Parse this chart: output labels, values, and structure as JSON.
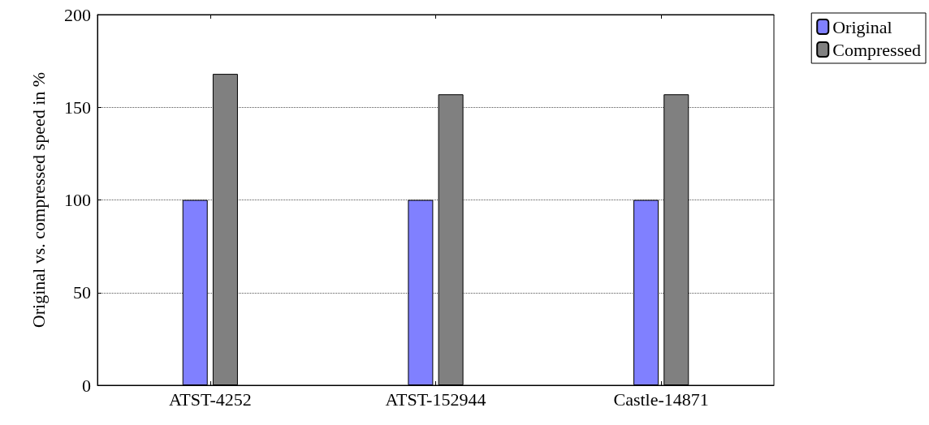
{
  "chart_data": {
    "type": "bar",
    "ylabel": "Original vs. compressed speed in %",
    "categories": [
      "ATST-4252",
      "ATST-152944",
      "Castle-14871"
    ],
    "series": [
      {
        "name": "Original",
        "color": "#8080ff",
        "values": [
          100,
          100,
          100
        ]
      },
      {
        "name": "Compressed",
        "color": "#808080",
        "values": [
          168,
          157,
          157
        ]
      }
    ],
    "ylim": [
      0,
      200
    ],
    "yticks": [
      0,
      50,
      100,
      150,
      200
    ],
    "grid": "y",
    "legend": "top right"
  }
}
